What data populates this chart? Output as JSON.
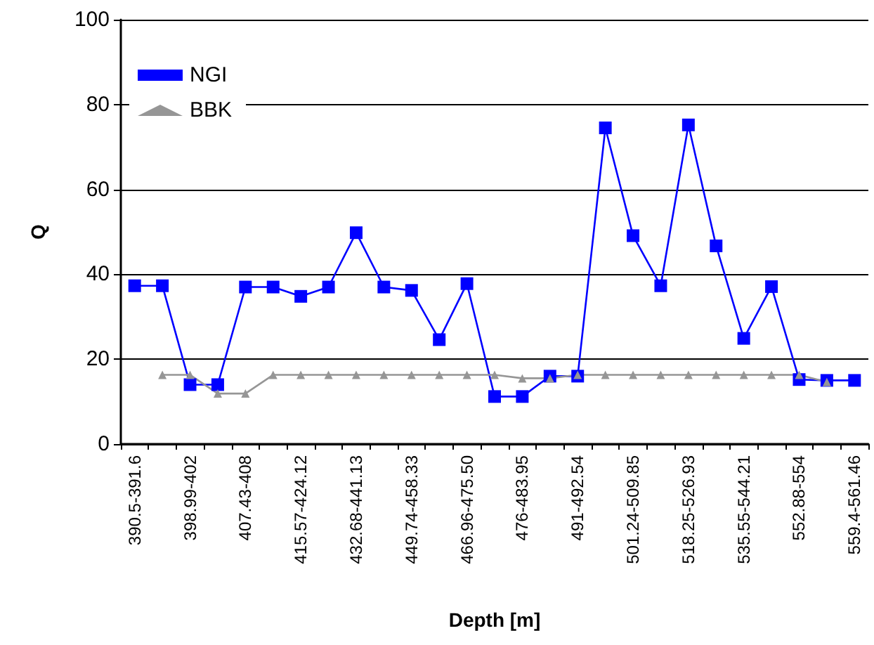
{
  "chart_data": {
    "type": "line",
    "xlabel": "Depth [m]",
    "ylabel": "Q",
    "categories": [
      "390.5-391.6",
      null,
      "398.99-402",
      null,
      "407.43-408",
      null,
      "415.57-424.12",
      null,
      "432.68-441.13",
      null,
      "449.74-458.33",
      null,
      "466.96-475.50",
      null,
      "476-483.95",
      null,
      "491-492.54",
      null,
      "501.24-509.85",
      null,
      "518.25-526.93",
      null,
      "535.55-544.21",
      null,
      "552.88-554",
      null,
      "559.4-561.46"
    ],
    "series": [
      {
        "name": "NGI",
        "color": "#0000ff",
        "marker": "square",
        "values": [
          37.3,
          37.3,
          14,
          14,
          37,
          37,
          34.8,
          37,
          49.8,
          37,
          36.2,
          24.6,
          37.8,
          11.2,
          11.2,
          16,
          16,
          74.5,
          49.1,
          37.3,
          75.2,
          46.7,
          24.9,
          37.1,
          15.2,
          15,
          15
        ]
      },
      {
        "name": "BBK",
        "color": "#969696",
        "marker": "triangle",
        "values": [
          null,
          16.3,
          16.3,
          11.9,
          11.9,
          16.3,
          16.3,
          16.3,
          16.3,
          16.3,
          16.3,
          16.3,
          16.3,
          16.3,
          15.5,
          15.5,
          16.3,
          16.3,
          16.3,
          16.3,
          16.3,
          16.3,
          16.3,
          16.3,
          16.3,
          14.6,
          null
        ]
      }
    ],
    "ylim": [
      0,
      100
    ],
    "yticks": [
      0,
      20,
      40,
      60,
      80,
      100
    ],
    "grid": "y",
    "legend": "top left",
    "line_style": "solid"
  }
}
